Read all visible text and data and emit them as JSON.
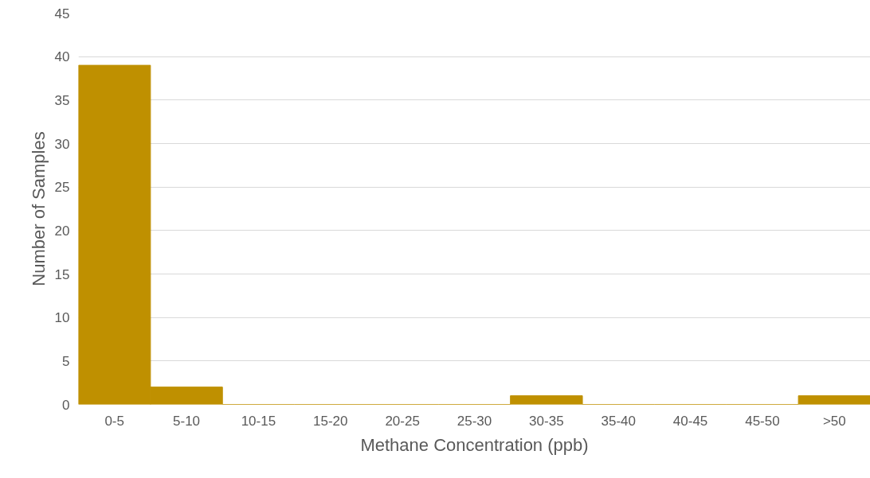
{
  "chart_data": {
    "type": "bar",
    "xlabel": "Methane Concentration (ppb)",
    "ylabel": "Number of Samples",
    "categories": [
      "0-5",
      "5-10",
      "10-15",
      "15-20",
      "20-25",
      "25-30",
      "30-35",
      "35-40",
      "40-45",
      "45-50",
      ">50"
    ],
    "values": [
      39,
      2,
      0,
      0,
      0,
      0,
      1,
      0,
      0,
      0,
      1
    ],
    "color": "#bf9000",
    "ylim": [
      0,
      45
    ],
    "yticks": [
      0,
      5,
      10,
      15,
      20,
      25,
      30,
      35,
      40,
      45
    ],
    "grid": "y"
  }
}
